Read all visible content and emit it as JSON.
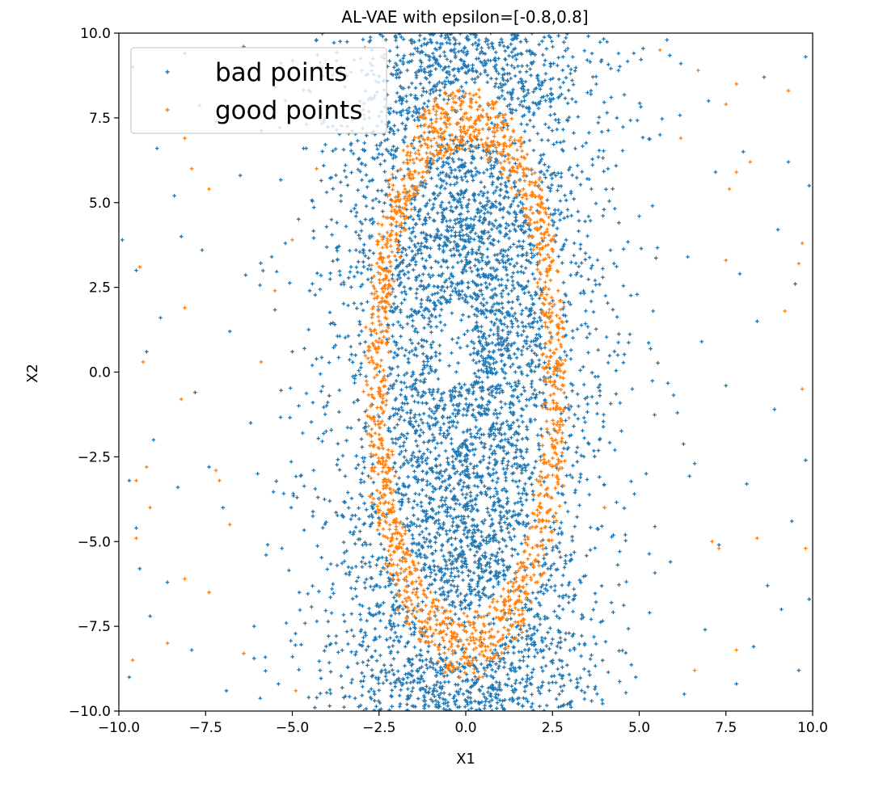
{
  "chart_data": {
    "type": "scatter",
    "title": "AL-VAE with epsilon=[-0.8,0.8]",
    "xlabel": "X1",
    "ylabel": "X2",
    "xlim": [
      -10,
      10
    ],
    "ylim": [
      -10,
      10
    ],
    "xticks": [
      -10,
      -7.5,
      -5,
      -2.5,
      0,
      2.5,
      5,
      7.5,
      10
    ],
    "yticks": [
      -10,
      -7.5,
      -5,
      -2.5,
      0,
      2.5,
      5,
      7.5,
      10
    ],
    "xtick_labels": [
      "−10.0",
      "−7.5",
      "−5.0",
      "−2.5",
      "0.0",
      "2.5",
      "5.0",
      "7.5",
      "10.0"
    ],
    "ytick_labels": [
      "−10.0",
      "−7.5",
      "−5.0",
      "−2.5",
      "0.0",
      "2.5",
      "5.0",
      "7.5",
      "10.0"
    ],
    "grid": false,
    "legend_position": "top-left",
    "series": [
      {
        "name": "bad points",
        "color": "#1f77b4",
        "marker": "plus",
        "points": [
          [
            -9.6,
            9.0
          ],
          [
            -8.9,
            6.6
          ],
          [
            -8.4,
            5.2
          ],
          [
            -9.5,
            3.0
          ],
          [
            -8.2,
            4.0
          ],
          [
            -7.6,
            3.6
          ],
          [
            -8.8,
            1.6
          ],
          [
            -9.2,
            0.6
          ],
          [
            -7.8,
            -0.6
          ],
          [
            -9.0,
            -2.0
          ],
          [
            -8.3,
            -3.4
          ],
          [
            -9.5,
            -4.6
          ],
          [
            -7.0,
            -4.0
          ],
          [
            -8.6,
            -6.2
          ],
          [
            -9.1,
            -7.2
          ],
          [
            -7.9,
            -8.2
          ],
          [
            -9.7,
            -9.0
          ],
          [
            -6.5,
            5.8
          ],
          [
            -6.8,
            1.2
          ],
          [
            -6.2,
            -1.5
          ],
          [
            -6.0,
            -3.0
          ],
          [
            -5.5,
            8.4
          ],
          [
            -5.2,
            3.8
          ],
          [
            -5.0,
            0.6
          ],
          [
            -5.3,
            -5.2
          ],
          [
            -6.1,
            -7.5
          ],
          [
            -5.4,
            -9.2
          ],
          [
            -4.6,
            6.6
          ],
          [
            -4.5,
            2.4
          ],
          [
            -4.7,
            -1.8
          ],
          [
            -4.8,
            -6.5
          ],
          [
            -7.2,
            7.4
          ],
          [
            -6.9,
            -9.4
          ],
          [
            -9.9,
            3.9
          ],
          [
            -9.7,
            -3.2
          ],
          [
            -8.1,
            9.4
          ],
          [
            -6.4,
            9.6
          ],
          [
            -4.3,
            9.8
          ],
          [
            -4.2,
            -8.8
          ],
          [
            -7.4,
            -2.8
          ],
          [
            -9.4,
            -5.8
          ],
          [
            4.4,
            8.9
          ],
          [
            5.6,
            7.0
          ],
          [
            6.2,
            9.1
          ],
          [
            7.2,
            5.9
          ],
          [
            8.0,
            6.5
          ],
          [
            9.3,
            6.2
          ],
          [
            9.8,
            9.3
          ],
          [
            5.0,
            4.6
          ],
          [
            6.4,
            3.4
          ],
          [
            7.9,
            2.9
          ],
          [
            9.0,
            4.2
          ],
          [
            9.9,
            5.5
          ],
          [
            5.4,
            1.8
          ],
          [
            6.8,
            0.9
          ],
          [
            8.4,
            1.5
          ],
          [
            9.5,
            2.6
          ],
          [
            4.8,
            -0.5
          ],
          [
            6.1,
            -1.2
          ],
          [
            7.5,
            -0.4
          ],
          [
            8.9,
            -1.1
          ],
          [
            9.8,
            -2.6
          ],
          [
            5.2,
            -3.0
          ],
          [
            6.6,
            -2.7
          ],
          [
            8.1,
            -3.3
          ],
          [
            9.4,
            -4.4
          ],
          [
            4.6,
            -4.8
          ],
          [
            5.9,
            -5.6
          ],
          [
            7.3,
            -5.1
          ],
          [
            8.7,
            -6.3
          ],
          [
            9.9,
            -6.7
          ],
          [
            5.3,
            -7.1
          ],
          [
            6.9,
            -7.6
          ],
          [
            8.3,
            -8.1
          ],
          [
            9.6,
            -8.8
          ],
          [
            4.9,
            -9.0
          ],
          [
            6.3,
            -9.5
          ],
          [
            7.8,
            -9.2
          ],
          [
            9.1,
            -7.0
          ],
          [
            7.0,
            8.0
          ],
          [
            8.6,
            8.7
          ],
          [
            5.8,
            9.8
          ],
          [
            4.1,
            6.0
          ],
          [
            4.3,
            -2.3
          ],
          [
            4.2,
            -6.8
          ]
        ]
      },
      {
        "name": "good points",
        "color": "#ff7f0e",
        "marker": "plus",
        "points": [
          [
            -8.1,
            6.9
          ],
          [
            -7.9,
            6.0
          ],
          [
            -7.4,
            5.4
          ],
          [
            -9.4,
            3.1
          ],
          [
            -8.1,
            1.9
          ],
          [
            -9.3,
            0.3
          ],
          [
            -8.2,
            -0.8
          ],
          [
            -9.2,
            -2.8
          ],
          [
            -9.5,
            -3.2
          ],
          [
            -7.1,
            -3.2
          ],
          [
            -9.5,
            -4.9
          ],
          [
            -8.1,
            -6.1
          ],
          [
            -7.4,
            -6.5
          ],
          [
            -9.6,
            -8.5
          ],
          [
            -6.4,
            -8.3
          ],
          [
            -5.9,
            0.3
          ],
          [
            -5.5,
            2.4
          ],
          [
            -5.0,
            3.9
          ],
          [
            -7.2,
            -2.9
          ],
          [
            -8.6,
            -8.0
          ],
          [
            -4.9,
            -9.4
          ],
          [
            -4.3,
            6.0
          ],
          [
            -9.1,
            -4.0
          ],
          [
            -6.8,
            -4.5
          ],
          [
            5.6,
            9.5
          ],
          [
            6.2,
            6.9
          ],
          [
            6.7,
            8.9
          ],
          [
            7.5,
            7.9
          ],
          [
            7.8,
            5.9
          ],
          [
            8.2,
            6.2
          ],
          [
            7.6,
            5.4
          ],
          [
            9.3,
            8.3
          ],
          [
            9.7,
            3.8
          ],
          [
            9.6,
            3.2
          ],
          [
            7.5,
            3.3
          ],
          [
            9.2,
            1.8
          ],
          [
            9.7,
            -0.5
          ],
          [
            8.4,
            -4.9
          ],
          [
            7.1,
            -5.0
          ],
          [
            7.3,
            -5.2
          ],
          [
            9.8,
            -5.2
          ],
          [
            7.8,
            -8.2
          ],
          [
            6.6,
            -8.8
          ],
          [
            7.8,
            8.5
          ],
          [
            4.0,
            -4.0
          ]
        ]
      }
    ],
    "clusters": [
      {
        "series": "good points",
        "shape": "elliptical ring",
        "center": [
          0,
          0
        ],
        "rx": 2.6,
        "ry": 7.8,
        "thickness": 0.9
      },
      {
        "series": "bad points",
        "shape": "dense band inside and around ring",
        "x_range": [
          -4.5,
          4.5
        ],
        "y_range": [
          -10,
          10
        ]
      }
    ]
  }
}
